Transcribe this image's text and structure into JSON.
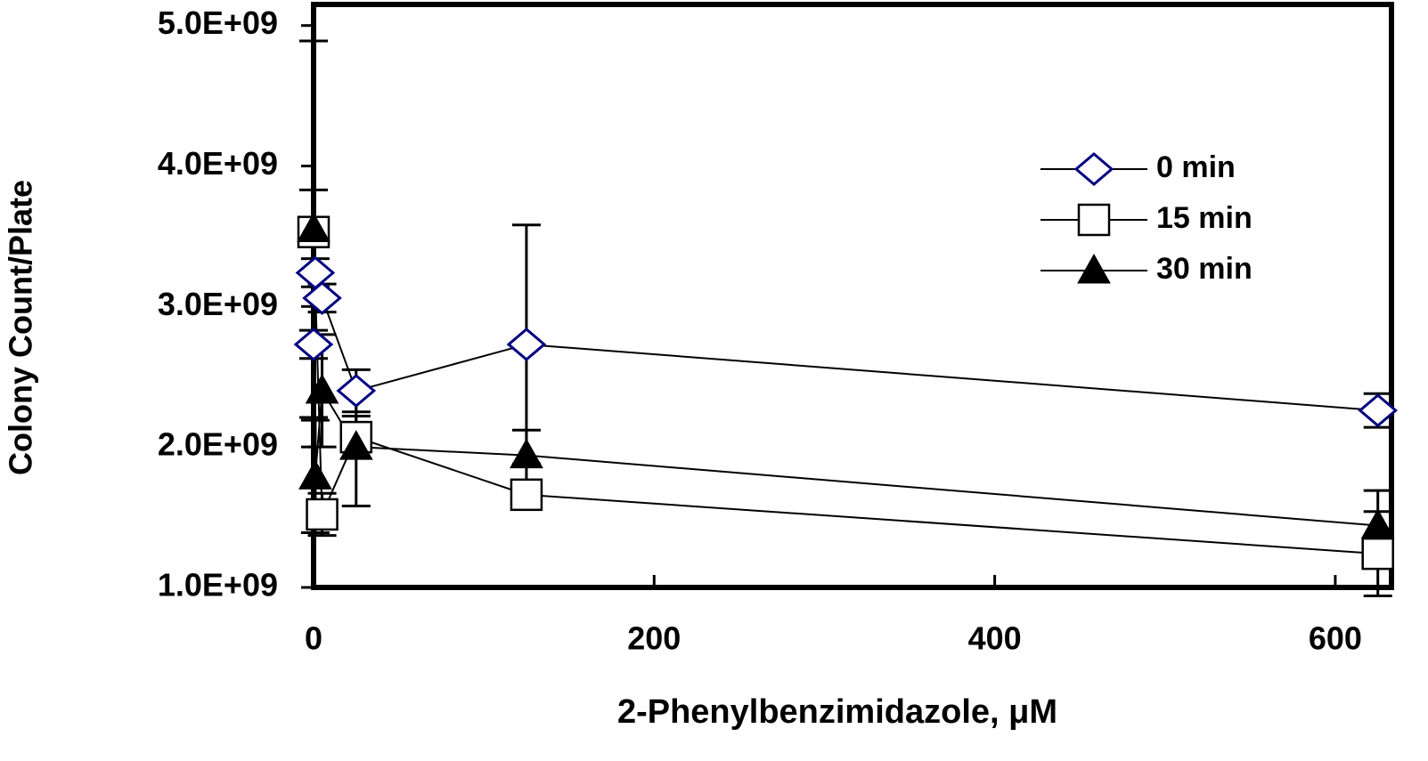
{
  "chart_data": {
    "type": "line",
    "xlabel": "2-Phenylbenzimidazole, μM",
    "ylabel": "Colony Count/Plate",
    "xlim": [
      0,
      633
    ],
    "xticks": [
      0,
      200,
      400,
      600
    ],
    "ylim": [
      1000000000,
      5150000000
    ],
    "yticks": [
      {
        "value": 1000000000,
        "label": "1.0E+09"
      },
      {
        "value": 2000000000,
        "label": "2.0E+09"
      },
      {
        "value": 3000000000,
        "label": "3.0E+09"
      },
      {
        "value": 4000000000,
        "label": "4.0E+09"
      },
      {
        "value": 5000000000,
        "label": "5.0E+09"
      }
    ],
    "legend": "upper right",
    "series": [
      {
        "name": "0 min",
        "color": "#000080",
        "marker": "diamond",
        "x": [
          0,
          1,
          5,
          25,
          125,
          625
        ],
        "values": [
          2730000000,
          3240000000,
          3060000000,
          2400000000,
          2730000000,
          2260000000
        ],
        "errors": [
          100000000,
          100000000,
          100000000,
          150000000,
          850000000,
          120000000
        ]
      },
      {
        "name": "15 min",
        "color": "#000000",
        "marker": "square",
        "x": [
          0,
          5,
          25,
          125,
          625
        ],
        "values": [
          3530000000,
          1520000000,
          2070000000,
          1660000000,
          1240000000
        ],
        "errors": [
          300000000,
          150000000,
          150000000,
          100000000,
          300000000
        ]
      },
      {
        "name": "30 min",
        "color": "#000000",
        "marker": "triangle",
        "x": [
          0,
          1,
          5,
          25,
          125,
          625
        ],
        "values": [
          3550000000,
          1790000000,
          2400000000,
          2000000000,
          1940000000,
          1440000000
        ],
        "errors": [
          1340000000,
          400000000,
          400000000,
          420000000,
          180000000,
          250000000
        ]
      }
    ]
  }
}
